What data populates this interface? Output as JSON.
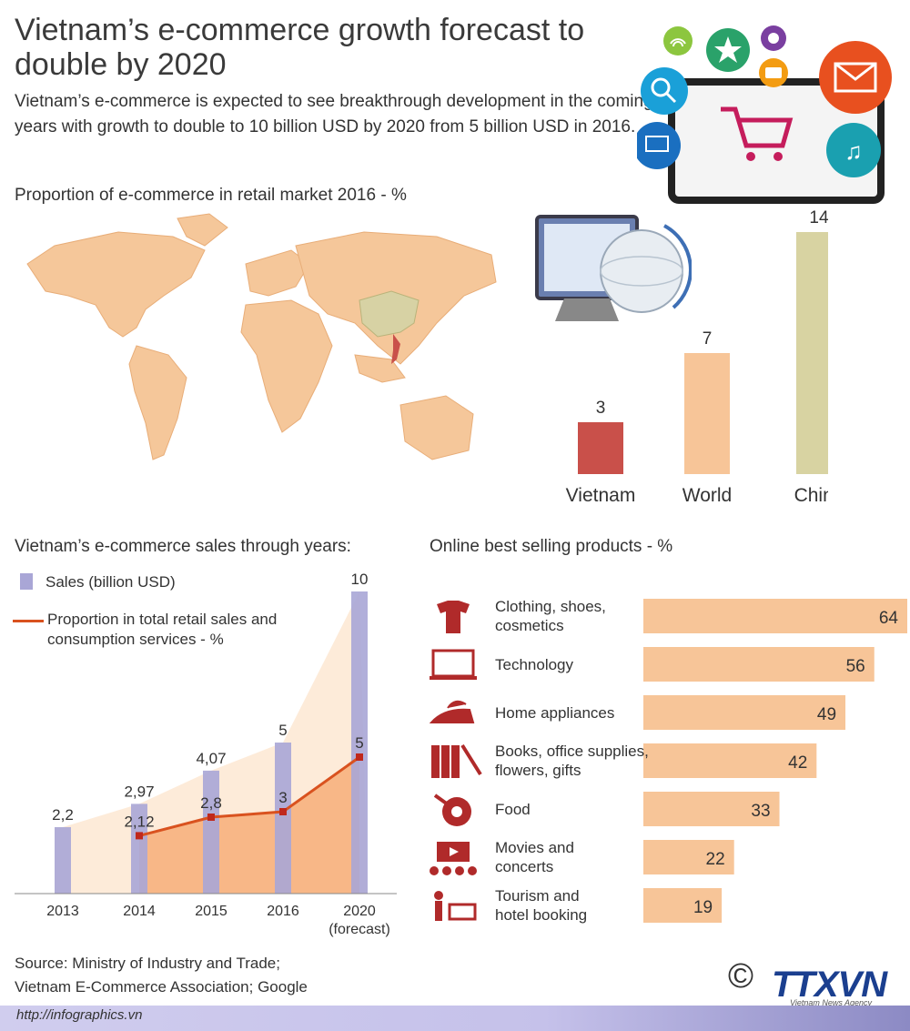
{
  "header": {
    "title": "Vietnam’s e-commerce growth forecast to double by 2020",
    "intro": "Vietnam’s e-commerce is expected to see breakthrough development in the coming years with growth to double to 10 billion USD by 2020 from 5 billion USD in 2016."
  },
  "sections": {
    "proportion_title": "Proportion of e-commerce in retail market 2016 - %",
    "sales_title": "Vietnam’s e-commerce sales through years:",
    "products_title": "Online best selling products - %"
  },
  "legend": {
    "sales_label": "Sales (billion USD)",
    "proportion_label": "Proportion in total retail sales and consumption services - %"
  },
  "colors": {
    "vietnam": "#c9504a",
    "world": "#f7c598",
    "china": "#d8d3a2",
    "sales_bar": "#a9a6d6",
    "proportion_line": "#d9521f",
    "product_bar": "#f7c598",
    "icon": "#b02a2a",
    "map": "#f5c79a",
    "china_map": "#d7d2a4"
  },
  "icons": [
    "wifi-icon",
    "star-icon",
    "gear-icon",
    "search-icon",
    "camera-icon",
    "mail-icon",
    "music-icon",
    "shopping-cart-icon",
    "monitor-icon",
    "globe-icon",
    "copyright-icon"
  ],
  "chart_data": [
    {
      "type": "bar",
      "title": "Proportion of e-commerce in retail market 2016 - %",
      "categories": [
        "Vietnam",
        "World",
        "China"
      ],
      "values": [
        3,
        7,
        14
      ],
      "value_labels": [
        "3",
        "7",
        "14"
      ]
    },
    {
      "type": "bar",
      "title": "Vietnam’s e-commerce sales through years:",
      "categories": [
        "2013",
        "2014",
        "2015",
        "2016",
        "2020"
      ],
      "category_notes": [
        "",
        "",
        "",
        "",
        "(forecast)"
      ],
      "series": [
        {
          "name": "Sales (billion USD)",
          "type": "bar",
          "values": [
            2.2,
            2.97,
            4.07,
            5,
            10
          ],
          "labels": [
            "2,2",
            "2,97",
            "4,07",
            "5",
            "10"
          ]
        },
        {
          "name": "Proportion in total retail sales and consumption services - %",
          "type": "line",
          "values": [
            null,
            2.12,
            2.8,
            3,
            5
          ],
          "labels": [
            "",
            "2,12",
            "2,8",
            "3",
            "5"
          ]
        }
      ]
    },
    {
      "type": "bar",
      "orientation": "horizontal",
      "title": "Online best selling products - %",
      "categories": [
        "Clothing, shoes, cosmetics",
        "Technology",
        "Home appliances",
        "Books, office supplies, flowers, gifts",
        "Food",
        "Movies and concerts",
        "Tourism and hotel booking"
      ],
      "category_lines": [
        [
          "Clothing, shoes,",
          "cosmetics"
        ],
        [
          "Technology"
        ],
        [
          "Home appliances"
        ],
        [
          "Books, office supplies,",
          "flowers, gifts"
        ],
        [
          "Food"
        ],
        [
          "Movies and",
          "concerts"
        ],
        [
          "Tourism and",
          "hotel booking"
        ]
      ],
      "category_icons": [
        "shirt-icon",
        "laptop-icon",
        "iron-icon",
        "books-icon",
        "food-icon",
        "movie-icon",
        "hotel-icon"
      ],
      "values": [
        64,
        56,
        49,
        42,
        33,
        22,
        19
      ]
    }
  ],
  "footer": {
    "source_line1": "Source: Ministry of Industry and Trade;",
    "source_line2": "Vietnam E-Commerce Association; Google",
    "url": "http://infographics.vn",
    "copyright": "©",
    "logo": "TTXVN",
    "logo_sub": "Vietnam News Agency"
  }
}
